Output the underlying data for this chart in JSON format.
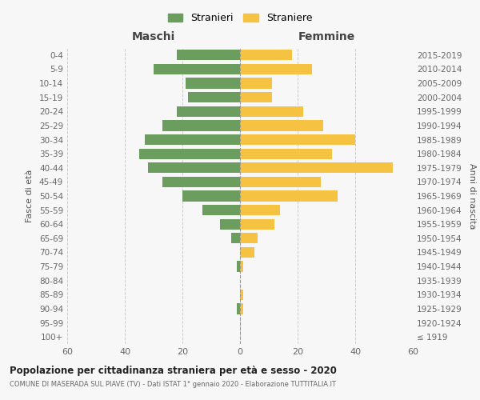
{
  "age_groups": [
    "100+",
    "95-99",
    "90-94",
    "85-89",
    "80-84",
    "75-79",
    "70-74",
    "65-69",
    "60-64",
    "55-59",
    "50-54",
    "45-49",
    "40-44",
    "35-39",
    "30-34",
    "25-29",
    "20-24",
    "15-19",
    "10-14",
    "5-9",
    "0-4"
  ],
  "birth_years": [
    "≤ 1919",
    "1920-1924",
    "1925-1929",
    "1930-1934",
    "1935-1939",
    "1940-1944",
    "1945-1949",
    "1950-1954",
    "1955-1959",
    "1960-1964",
    "1965-1969",
    "1970-1974",
    "1975-1979",
    "1980-1984",
    "1985-1989",
    "1990-1994",
    "1995-1999",
    "2000-2004",
    "2005-2009",
    "2010-2014",
    "2015-2019"
  ],
  "maschi": [
    0,
    0,
    1,
    0,
    0,
    1,
    0,
    3,
    7,
    13,
    20,
    27,
    32,
    35,
    33,
    27,
    22,
    18,
    19,
    30,
    22
  ],
  "femmine": [
    0,
    0,
    1,
    1,
    0,
    1,
    5,
    6,
    12,
    14,
    34,
    28,
    53,
    32,
    40,
    29,
    22,
    11,
    11,
    25,
    18
  ],
  "color_maschi": "#6b9e5e",
  "color_femmine": "#f5c242",
  "background_color": "#f7f7f7",
  "title": "Popolazione per cittadinanza straniera per età e sesso - 2020",
  "subtitle": "COMUNE DI MASERADA SUL PIAVE (TV) - Dati ISTAT 1° gennaio 2020 - Elaborazione TUTTITALIA.IT",
  "xlabel_left": "Maschi",
  "xlabel_right": "Femmine",
  "ylabel_left": "Fasce di età",
  "ylabel_right": "Anni di nascita",
  "legend_maschi": "Stranieri",
  "legend_femmine": "Straniere",
  "xlim": 60,
  "grid_color": "#cccccc"
}
